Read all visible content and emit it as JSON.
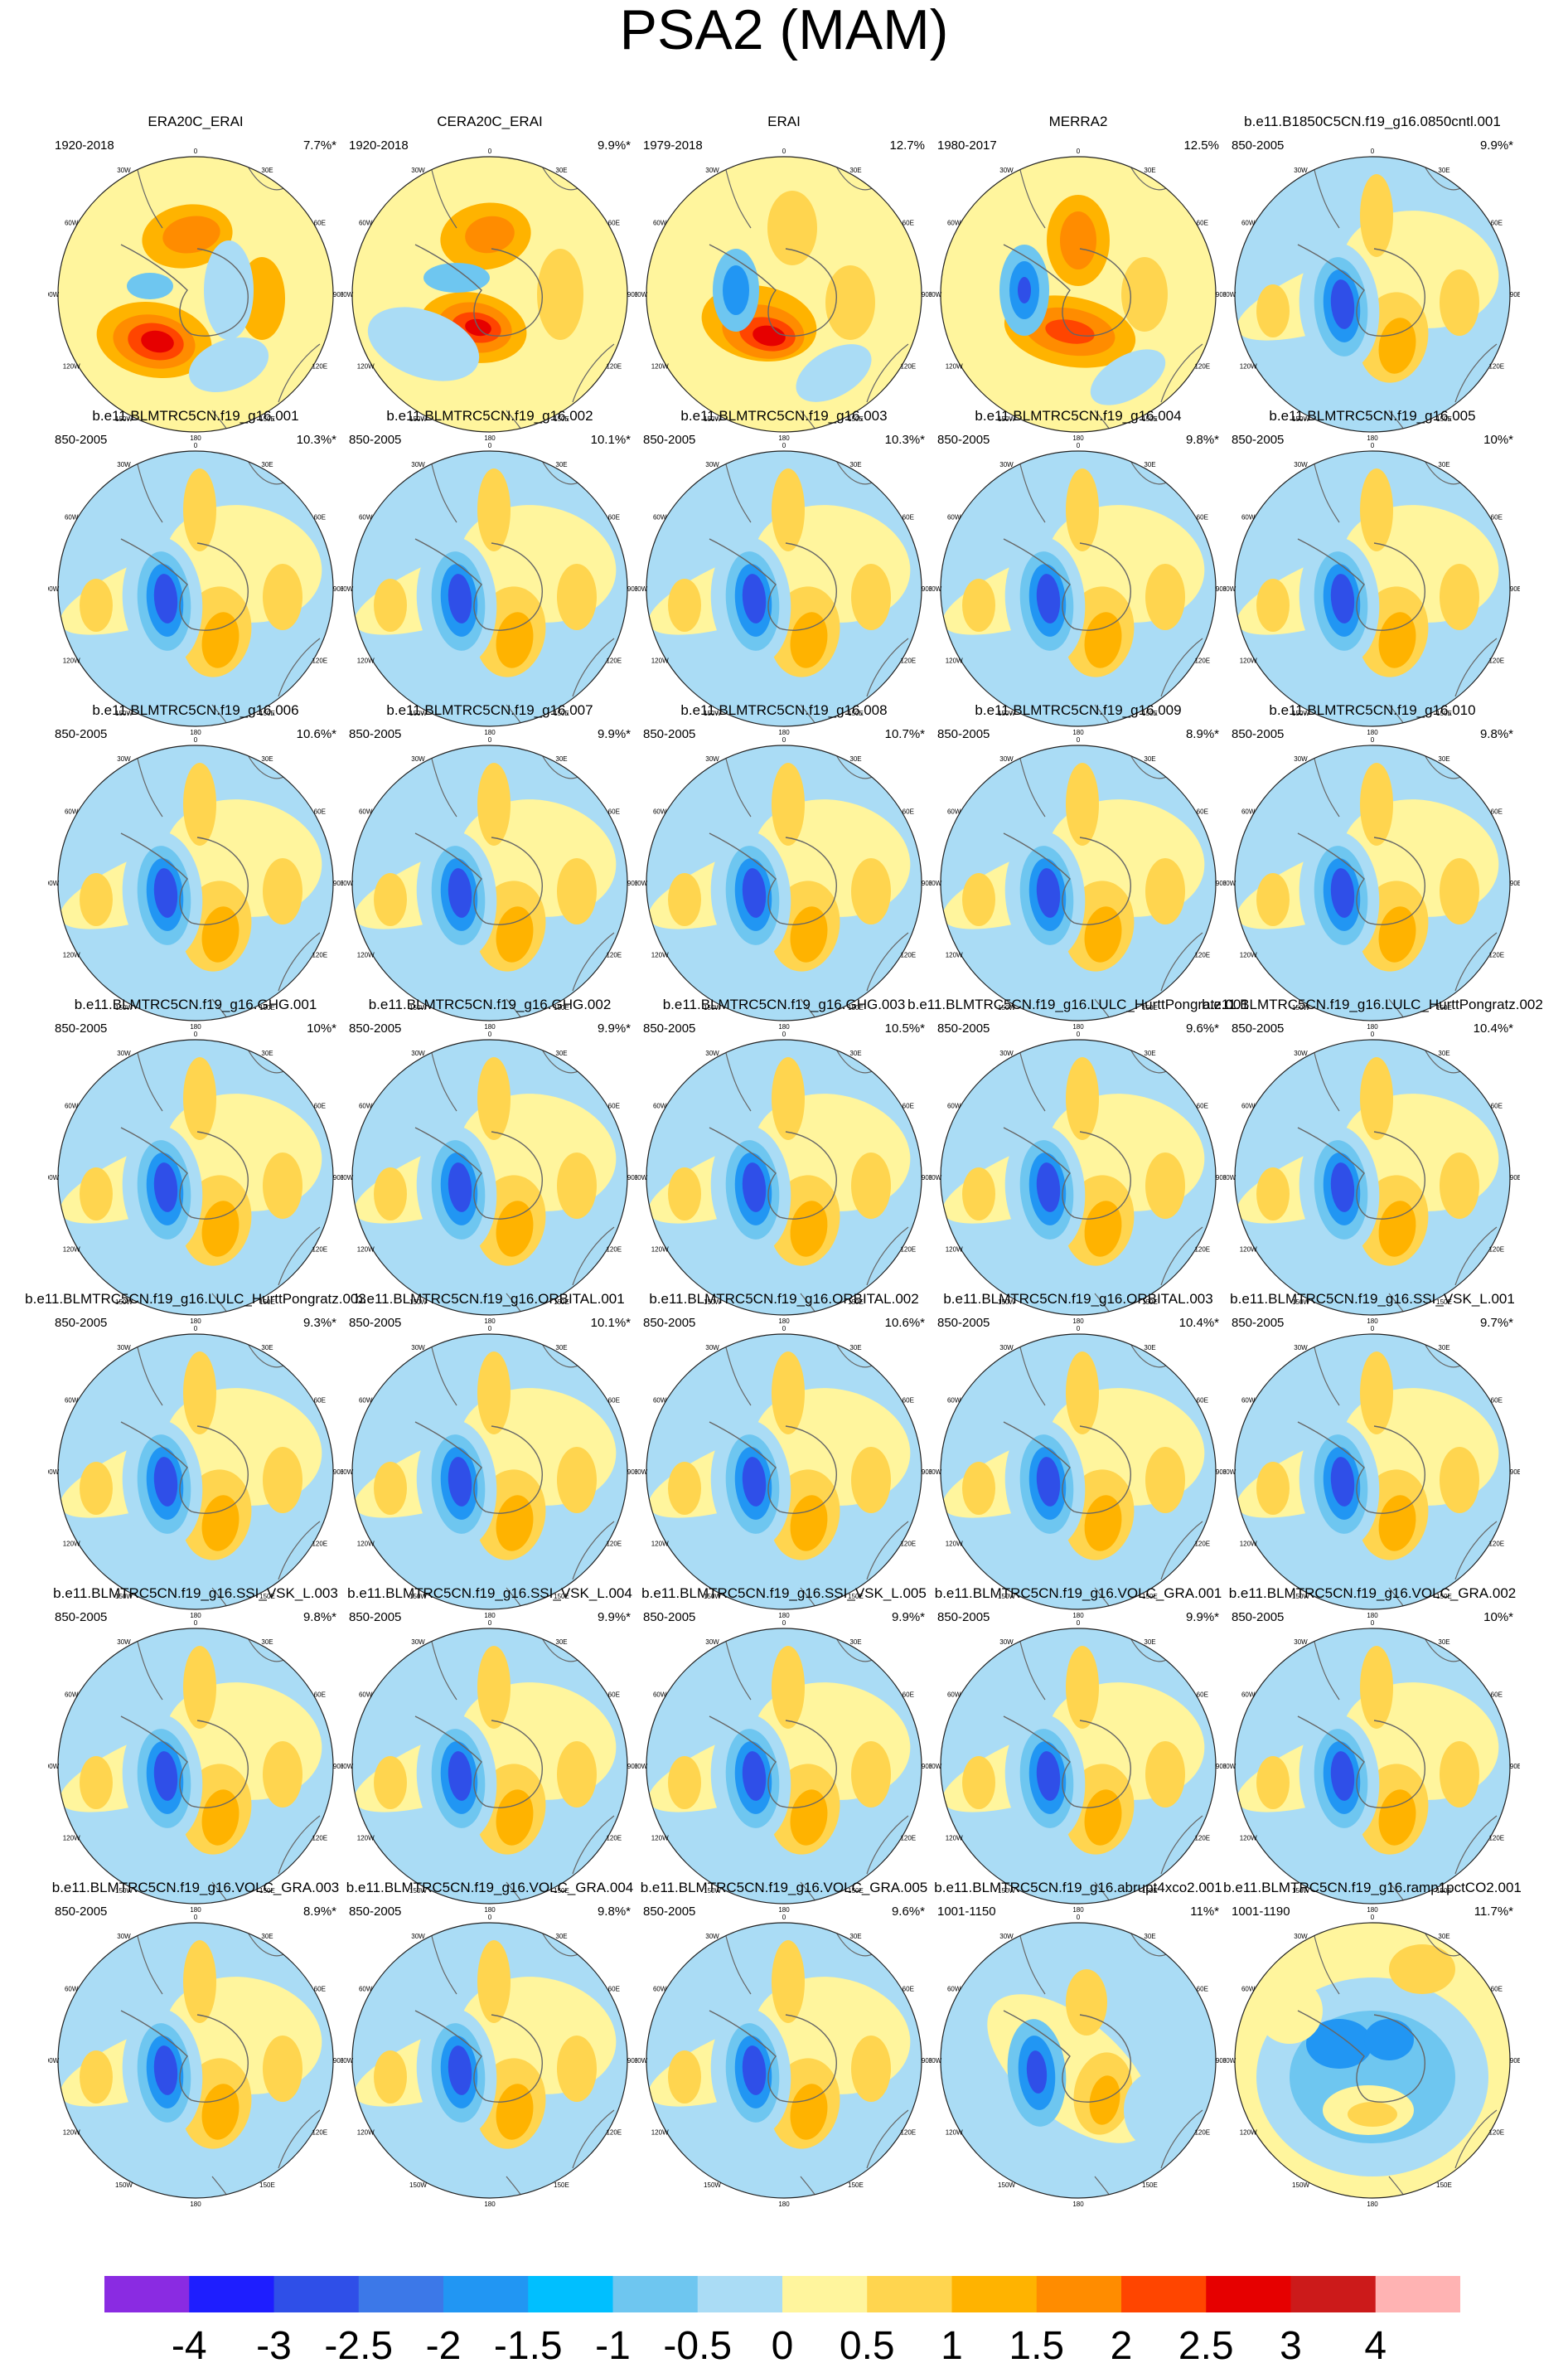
{
  "title": "PSA2 (MAM)",
  "chart_data": {
    "type": "heatmap",
    "projection": "south-polar-stereographic",
    "longitude_labels": [
      "0",
      "30E",
      "60E",
      "90E",
      "120E",
      "150E",
      "180",
      "150W",
      "120W",
      "90W",
      "60W",
      "30W"
    ],
    "panels": [
      {
        "title": "ERA20C_ERAI",
        "period": "1920-2018",
        "variance": "7.7%*",
        "pattern": "reanalysis_a"
      },
      {
        "title": "CERA20C_ERAI",
        "period": "1920-2018",
        "variance": "9.9%*",
        "pattern": "reanalysis_b"
      },
      {
        "title": "ERAI",
        "period": "1979-2018",
        "variance": "12.7%",
        "pattern": "reanalysis_c"
      },
      {
        "title": "MERRA2",
        "period": "1980-2017",
        "variance": "12.5%",
        "pattern": "reanalysis_d"
      },
      {
        "title": "b.e11.B1850C5CN.f19_g16.0850cntl.001",
        "period": "850-2005",
        "variance": "9.9%*",
        "pattern": "model"
      },
      {
        "title": "b.e11.BLMTRC5CN.f19_g16.001",
        "period": "850-2005",
        "variance": "10.3%*",
        "pattern": "model"
      },
      {
        "title": "b.e11.BLMTRC5CN.f19_g16.002",
        "period": "850-2005",
        "variance": "10.1%*",
        "pattern": "model"
      },
      {
        "title": "b.e11.BLMTRC5CN.f19_g16.003",
        "period": "850-2005",
        "variance": "10.3%*",
        "pattern": "model"
      },
      {
        "title": "b.e11.BLMTRC5CN.f19_g16.004",
        "period": "850-2005",
        "variance": "9.8%*",
        "pattern": "model"
      },
      {
        "title": "b.e11.BLMTRC5CN.f19_g16.005",
        "period": "850-2005",
        "variance": "10%*",
        "pattern": "model"
      },
      {
        "title": "b.e11.BLMTRC5CN.f19_g16.006",
        "period": "850-2005",
        "variance": "10.6%*",
        "pattern": "model"
      },
      {
        "title": "b.e11.BLMTRC5CN.f19_g16.007",
        "period": "850-2005",
        "variance": "9.9%*",
        "pattern": "model"
      },
      {
        "title": "b.e11.BLMTRC5CN.f19_g16.008",
        "period": "850-2005",
        "variance": "10.7%*",
        "pattern": "model"
      },
      {
        "title": "b.e11.BLMTRC5CN.f19_g16.009",
        "period": "850-2005",
        "variance": "8.9%*",
        "pattern": "model"
      },
      {
        "title": "b.e11.BLMTRC5CN.f19_g16.010",
        "period": "850-2005",
        "variance": "9.8%*",
        "pattern": "model"
      },
      {
        "title": "b.e11.BLMTRC5CN.f19_g16.GHG.001",
        "period": "850-2005",
        "variance": "10%*",
        "pattern": "model"
      },
      {
        "title": "b.e11.BLMTRC5CN.f19_g16.GHG.002",
        "period": "850-2005",
        "variance": "9.9%*",
        "pattern": "model"
      },
      {
        "title": "b.e11.BLMTRC5CN.f19_g16.GHG.003",
        "period": "850-2005",
        "variance": "10.5%*",
        "pattern": "model"
      },
      {
        "title": "b.e11.BLMTRC5CN.f19_g16.LULC_HurttPongratz.001",
        "period": "850-2005",
        "variance": "9.6%*",
        "pattern": "model"
      },
      {
        "title": "b.e11.BLMTRC5CN.f19_g16.LULC_HurttPongratz.002",
        "period": "850-2005",
        "variance": "10.4%*",
        "pattern": "model"
      },
      {
        "title": "b.e11.BLMTRC5CN.f19_g16.LULC_HurttPongratz.003",
        "period": "850-2005",
        "variance": "9.3%*",
        "pattern": "model"
      },
      {
        "title": "b.e11.BLMTRC5CN.f19_g16.ORBITAL.001",
        "period": "850-2005",
        "variance": "10.1%*",
        "pattern": "model"
      },
      {
        "title": "b.e11.BLMTRC5CN.f19_g16.ORBITAL.002",
        "period": "850-2005",
        "variance": "10.6%*",
        "pattern": "model"
      },
      {
        "title": "b.e11.BLMTRC5CN.f19_g16.ORBITAL.003",
        "period": "850-2005",
        "variance": "10.4%*",
        "pattern": "model"
      },
      {
        "title": "b.e11.BLMTRC5CN.f19_g16.SSI_VSK_L.001",
        "period": "850-2005",
        "variance": "9.7%*",
        "pattern": "model"
      },
      {
        "title": "b.e11.BLMTRC5CN.f19_g16.SSI_VSK_L.003",
        "period": "850-2005",
        "variance": "9.8%*",
        "pattern": "model"
      },
      {
        "title": "b.e11.BLMTRC5CN.f19_g16.SSI_VSK_L.004",
        "period": "850-2005",
        "variance": "9.9%*",
        "pattern": "model"
      },
      {
        "title": "b.e11.BLMTRC5CN.f19_g16.SSI_VSK_L.005",
        "period": "850-2005",
        "variance": "9.9%*",
        "pattern": "model"
      },
      {
        "title": "b.e11.BLMTRC5CN.f19_g16.VOLC_GRA.001",
        "period": "850-2005",
        "variance": "9.9%*",
        "pattern": "model"
      },
      {
        "title": "b.e11.BLMTRC5CN.f19_g16.VOLC_GRA.002",
        "period": "850-2005",
        "variance": "10%*",
        "pattern": "model"
      },
      {
        "title": "b.e11.BLMTRC5CN.f19_g16.VOLC_GRA.003",
        "period": "850-2005",
        "variance": "8.9%*",
        "pattern": "model"
      },
      {
        "title": "b.e11.BLMTRC5CN.f19_g16.VOLC_GRA.004",
        "period": "850-2005",
        "variance": "9.8%*",
        "pattern": "model"
      },
      {
        "title": "b.e11.BLMTRC5CN.f19_g16.VOLC_GRA.005",
        "period": "850-2005",
        "variance": "9.6%*",
        "pattern": "model"
      },
      {
        "title": "b.e11.BLMTRC5CN.f19_g16.abrupt4xco2.001",
        "period": "1001-1150",
        "variance": "11%*",
        "pattern": "abrupt"
      },
      {
        "title": "b.e11.BLMTRC5CN.f19_g16.ramp1pctCO2.001",
        "period": "1001-1190",
        "variance": "11.7%*",
        "pattern": "ramp"
      }
    ],
    "colorbar": {
      "labels": [
        "-4",
        "-3",
        "-2.5",
        "-2",
        "-1.5",
        "-1",
        "-0.5",
        "0",
        "0.5",
        "1",
        "1.5",
        "2",
        "2.5",
        "3",
        "4"
      ],
      "colors": [
        "#8a2be2",
        "#1e1eff",
        "#2f4fe8",
        "#3c78e8",
        "#2196f3",
        "#00bfff",
        "#6ec6f0",
        "#aadcf5",
        "#fff59d",
        "#ffd54f",
        "#ffb300",
        "#ff8c00",
        "#ff4500",
        "#e60000",
        "#cc1a1a",
        "#ffb3b3"
      ]
    }
  }
}
